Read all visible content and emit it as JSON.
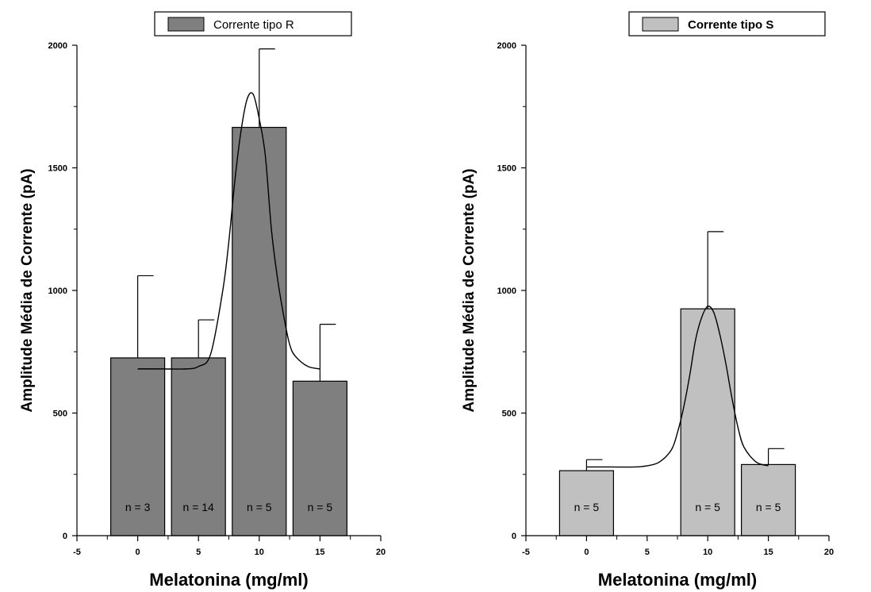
{
  "chart_data": [
    {
      "type": "bar",
      "legend": {
        "label": "Corrente tipo R",
        "color": "#7f7f7f",
        "bold": false
      },
      "xlabel": "Melatonina (mg/ml)",
      "ylabel": "Amplitude Média de Corrente (pA)",
      "xlim": [
        -5,
        20
      ],
      "ylim": [
        0,
        2000
      ],
      "xticks": [
        -5,
        0,
        5,
        10,
        15,
        20
      ],
      "yticks": [
        0,
        500,
        1000,
        1500,
        2000
      ],
      "bar_color": "#7f7f7f",
      "bars": [
        {
          "x": 0,
          "value": 725,
          "error": 335,
          "n": "n = 3"
        },
        {
          "x": 5,
          "value": 725,
          "error": 155,
          "n": "n = 14"
        },
        {
          "x": 10,
          "value": 1665,
          "error": 320,
          "n": "n = 5"
        },
        {
          "x": 15,
          "value": 630,
          "error": 232,
          "n": "n = 5"
        }
      ],
      "curve": [
        [
          0,
          680
        ],
        [
          2,
          680
        ],
        [
          4,
          680
        ],
        [
          5,
          690
        ],
        [
          6,
          740
        ],
        [
          7,
          1000
        ],
        [
          7.5,
          1200
        ],
        [
          8,
          1450
        ],
        [
          8.5,
          1650
        ],
        [
          9,
          1780
        ],
        [
          9.5,
          1800
        ],
        [
          10,
          1700
        ],
        [
          10.5,
          1550
        ],
        [
          11,
          1250
        ],
        [
          11.5,
          1050
        ],
        [
          12,
          900
        ],
        [
          12.5,
          780
        ],
        [
          13,
          730
        ],
        [
          14,
          690
        ],
        [
          15,
          680
        ]
      ]
    },
    {
      "type": "bar",
      "legend": {
        "label": "Corrente tipo S",
        "color": "#c0c0c0",
        "bold": true
      },
      "xlabel": "Melatonina (mg/ml)",
      "ylabel": "Amplitude Média de Corrente (pA)",
      "xlim": [
        -5,
        20
      ],
      "ylim": [
        0,
        2000
      ],
      "xticks": [
        -5,
        0,
        5,
        10,
        15,
        20
      ],
      "yticks": [
        0,
        500,
        1000,
        1500,
        2000
      ],
      "bar_color": "#c0c0c0",
      "bars": [
        {
          "x": 0,
          "value": 265,
          "error": 45,
          "n": "n = 5"
        },
        {
          "x": 10,
          "value": 925,
          "error": 315,
          "n": "n = 5"
        },
        {
          "x": 15,
          "value": 290,
          "error": 65,
          "n": "n = 5"
        }
      ],
      "curve": [
        [
          0,
          280
        ],
        [
          2,
          280
        ],
        [
          4,
          280
        ],
        [
          5,
          285
        ],
        [
          6,
          300
        ],
        [
          7,
          350
        ],
        [
          7.5,
          420
        ],
        [
          8,
          520
        ],
        [
          8.5,
          650
        ],
        [
          9,
          800
        ],
        [
          9.5,
          890
        ],
        [
          10,
          935
        ],
        [
          10.5,
          910
        ],
        [
          11,
          820
        ],
        [
          11.5,
          700
        ],
        [
          12,
          560
        ],
        [
          12.5,
          440
        ],
        [
          13,
          360
        ],
        [
          14,
          300
        ],
        [
          15,
          285
        ]
      ]
    }
  ]
}
